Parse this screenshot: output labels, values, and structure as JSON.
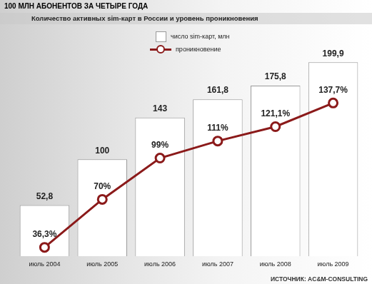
{
  "chart_data": {
    "type": "bar",
    "title": "100 МЛН АБОНЕНТОВ ЗА ЧЕТЫРЕ ГОДА",
    "subtitle": "Количество активных sim-карт в России и уровень проникновения",
    "source": "ИСТОЧНИК: AC&M-CONSULTING",
    "categories": [
      "июль 2004",
      "июль 2005",
      "июль 2006",
      "июль 2007",
      "июль 2008",
      "июль 2009"
    ],
    "series": [
      {
        "name": "число sim-карт, млн",
        "type": "bar",
        "color": "#ffffff",
        "values": [
          52.8,
          100,
          143,
          161.8,
          175.8,
          199.9
        ],
        "value_labels": [
          "52,8",
          "100",
          "143",
          "161,8",
          "175,8",
          "199,9"
        ]
      },
      {
        "name": "проникновение",
        "type": "line",
        "color": "#8b1a1a",
        "axis": "y2",
        "marker": "circle",
        "line_style": "solid",
        "values": [
          36.3,
          70,
          99,
          111,
          121.1,
          137.7
        ],
        "value_labels": [
          "36,3%",
          "70%",
          "99%",
          "111%",
          "121,1%",
          "137,7%"
        ]
      }
    ],
    "ylim": [
      0,
      220
    ],
    "y2lim": [
      30,
      180
    ],
    "tick_labels": "x",
    "grid": false,
    "data_labels": true,
    "legend": "top"
  }
}
